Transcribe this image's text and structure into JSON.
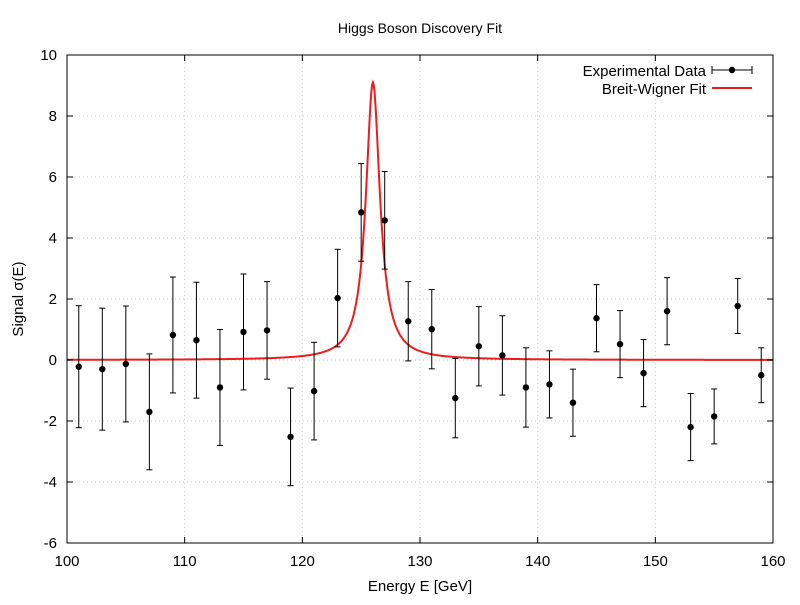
{
  "chart_data": {
    "type": "scatter",
    "title": "Higgs Boson Discovery Fit",
    "xlabel": "Energy E [GeV]",
    "ylabel": "Signal σ(E)",
    "xlim": [
      100,
      160
    ],
    "ylim": [
      -6,
      10
    ],
    "x_ticks": [
      100,
      110,
      120,
      130,
      140,
      150,
      160
    ],
    "y_ticks": [
      -6,
      -4,
      -2,
      0,
      2,
      4,
      6,
      8,
      10
    ],
    "grid": true,
    "legend_position": "top-right",
    "series": [
      {
        "name": "Experimental Data",
        "kind": "errorbar",
        "color": "#000000",
        "points": [
          {
            "x": 101,
            "y": -0.22,
            "err": 2.0
          },
          {
            "x": 103,
            "y": -0.3,
            "err": 2.0
          },
          {
            "x": 105,
            "y": -0.13,
            "err": 1.9
          },
          {
            "x": 107,
            "y": -1.7,
            "err": 1.9
          },
          {
            "x": 109,
            "y": 0.82,
            "err": 1.9
          },
          {
            "x": 111,
            "y": 0.65,
            "err": 1.9
          },
          {
            "x": 113,
            "y": -0.9,
            "err": 1.9
          },
          {
            "x": 115,
            "y": 0.92,
            "err": 1.9
          },
          {
            "x": 117,
            "y": 0.97,
            "err": 1.6
          },
          {
            "x": 119,
            "y": -2.52,
            "err": 1.6
          },
          {
            "x": 121,
            "y": -1.02,
            "err": 1.6
          },
          {
            "x": 123,
            "y": 2.03,
            "err": 1.6
          },
          {
            "x": 125,
            "y": 4.84,
            "err": 1.6
          },
          {
            "x": 127,
            "y": 4.58,
            "err": 1.6
          },
          {
            "x": 129,
            "y": 1.27,
            "err": 1.3
          },
          {
            "x": 131,
            "y": 1.01,
            "err": 1.3
          },
          {
            "x": 133,
            "y": -1.25,
            "err": 1.3
          },
          {
            "x": 135,
            "y": 0.45,
            "err": 1.3
          },
          {
            "x": 137,
            "y": 0.15,
            "err": 1.3
          },
          {
            "x": 139,
            "y": -0.9,
            "err": 1.3
          },
          {
            "x": 141,
            "y": -0.8,
            "err": 1.1
          },
          {
            "x": 143,
            "y": -1.4,
            "err": 1.1
          },
          {
            "x": 145,
            "y": 1.37,
            "err": 1.1
          },
          {
            "x": 147,
            "y": 0.52,
            "err": 1.1
          },
          {
            "x": 149,
            "y": -0.43,
            "err": 1.1
          },
          {
            "x": 151,
            "y": 1.6,
            "err": 1.1
          },
          {
            "x": 153,
            "y": -2.2,
            "err": 1.1
          },
          {
            "x": 155,
            "y": -1.85,
            "err": 0.9
          },
          {
            "x": 157,
            "y": 1.77,
            "err": 0.9
          },
          {
            "x": 159,
            "y": -0.5,
            "err": 0.9
          }
        ]
      },
      {
        "name": "Breit-Wigner Fit",
        "kind": "line",
        "color": "#ee1c1c",
        "model": "breit-wigner",
        "peak_position": 126.0,
        "peak_height": 9.1,
        "width_gamma": 1.45,
        "baseline": 0.0
      }
    ]
  }
}
